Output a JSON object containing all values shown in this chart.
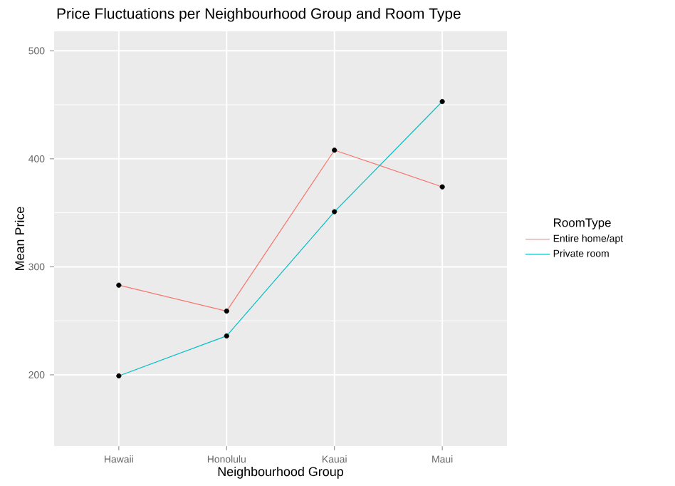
{
  "chart_data": {
    "type": "line",
    "title": "Price Fluctuations per Neighbourhood Group and Room Type",
    "xlabel": "Neighbourhood Group",
    "ylabel": "Mean Price",
    "legend_title": "RoomType",
    "categories": [
      "Hawaii",
      "Honolulu",
      "Kauai",
      "Maui"
    ],
    "series": [
      {
        "name": "Entire home/apt",
        "color": "#f8766d",
        "values": [
          283,
          259,
          408,
          374
        ]
      },
      {
        "name": "Private room",
        "color": "#00bfc4",
        "values": [
          199,
          236,
          351,
          453
        ]
      }
    ],
    "ylim": [
      134,
      518
    ],
    "yticks": [
      200,
      300,
      400,
      500
    ],
    "grid": true,
    "legend": "right",
    "marker": "circle",
    "line_style": "solid"
  }
}
